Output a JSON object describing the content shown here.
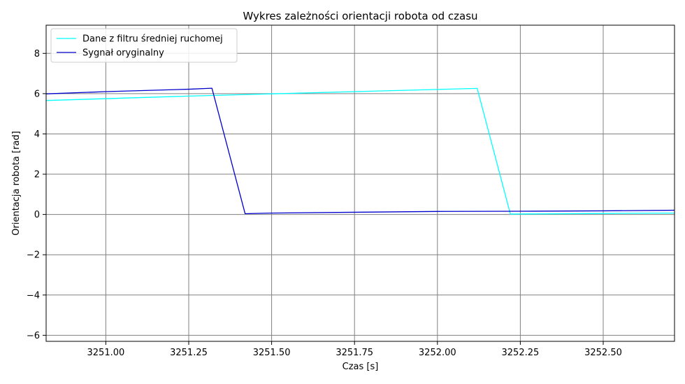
{
  "chart_data": {
    "type": "line",
    "title": "Wykres zależności orientacji robota od czasu",
    "xlabel": "Czas [s]",
    "ylabel": "Orientacja robota [rad]",
    "xlim": [
      3250.82,
      3252.715
    ],
    "ylim": [
      -6.3,
      9.4
    ],
    "xticks": [
      3251.0,
      3251.25,
      3251.5,
      3251.75,
      3252.0,
      3252.25,
      3252.5
    ],
    "xtick_labels": [
      "3251.00",
      "3251.25",
      "3251.50",
      "3251.75",
      "3252.00",
      "3252.25",
      "3252.50"
    ],
    "yticks": [
      -6,
      -4,
      -2,
      0,
      2,
      4,
      6,
      8
    ],
    "ytick_labels": [
      "−6",
      "−4",
      "−2",
      "0",
      "2",
      "4",
      "6",
      "8"
    ],
    "grid": true,
    "grid_color": "#808080",
    "legend_position": "top-left",
    "series": [
      {
        "name": "Dane z filtru średniej ruchomej",
        "color": "#00ffff",
        "x": [
          3250.82,
          3251.0,
          3251.25,
          3251.5,
          3251.75,
          3252.0,
          3252.12,
          3252.22,
          3252.5,
          3252.715
        ],
        "y": [
          5.66,
          5.75,
          5.88,
          5.99,
          6.1,
          6.21,
          6.26,
          0.02,
          0.05,
          0.07
        ]
      },
      {
        "name": "Sygnał oryginalny",
        "color": "#0000cd",
        "x": [
          3250.82,
          3251.0,
          3251.25,
          3251.32,
          3251.42,
          3251.5,
          3251.75,
          3252.0,
          3252.25,
          3252.5,
          3252.715
        ],
        "y": [
          5.99,
          6.1,
          6.22,
          6.27,
          0.04,
          0.07,
          0.11,
          0.15,
          0.16,
          0.18,
          0.21
        ]
      }
    ]
  }
}
